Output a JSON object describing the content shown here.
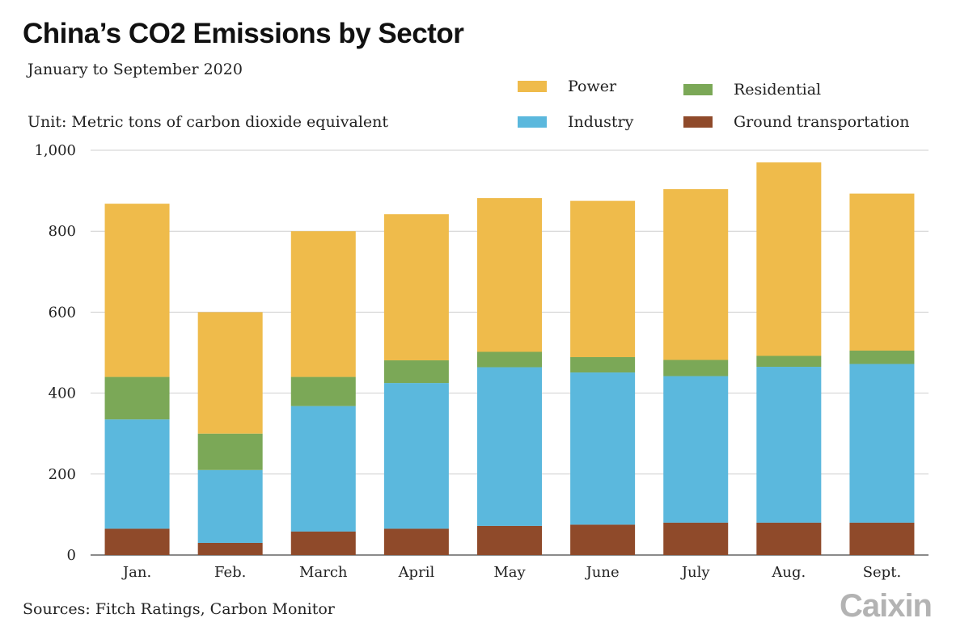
{
  "chart_data": {
    "type": "bar",
    "stacked": true,
    "title": "China’s CO2 Emissions by Sector",
    "subtitle": "January to September 2020",
    "unit_label": "Unit: Metric tons of carbon dioxide equivalent",
    "source": "Sources: Fitch Ratings, Carbon Monitor",
    "brand": "Caixin",
    "xlabel": "",
    "ylabel": "",
    "ylim": [
      0,
      1000
    ],
    "yticks": [
      0,
      200,
      400,
      600,
      800,
      1000
    ],
    "ytick_labels": [
      "0",
      "200",
      "400",
      "600",
      "800",
      "1,000"
    ],
    "grid": true,
    "legend_position": "top-right",
    "categories": [
      "Jan.",
      "Feb.",
      "March",
      "April",
      "May",
      "June",
      "July",
      "Aug.",
      "Sept."
    ],
    "series": [
      {
        "name": "Ground transportation",
        "color": "#8f4a2a",
        "values": [
          65,
          30,
          58,
          65,
          72,
          75,
          80,
          80,
          80
        ]
      },
      {
        "name": "Industry",
        "color": "#5bb8dd",
        "values": [
          270,
          180,
          310,
          360,
          392,
          376,
          362,
          385,
          392
        ]
      },
      {
        "name": "Residential",
        "color": "#7ba857",
        "values": [
          105,
          90,
          72,
          56,
          38,
          38,
          40,
          27,
          33
        ]
      },
      {
        "name": "Power",
        "color": "#efbb4b",
        "values": [
          428,
          300,
          360,
          361,
          380,
          386,
          422,
          478,
          388
        ]
      }
    ],
    "legend": [
      {
        "label": "Power",
        "color": "#efbb4b"
      },
      {
        "label": "Residential",
        "color": "#7ba857"
      },
      {
        "label": "Industry",
        "color": "#5bb8dd"
      },
      {
        "label": "Ground transportation",
        "color": "#8f4a2a"
      }
    ]
  }
}
